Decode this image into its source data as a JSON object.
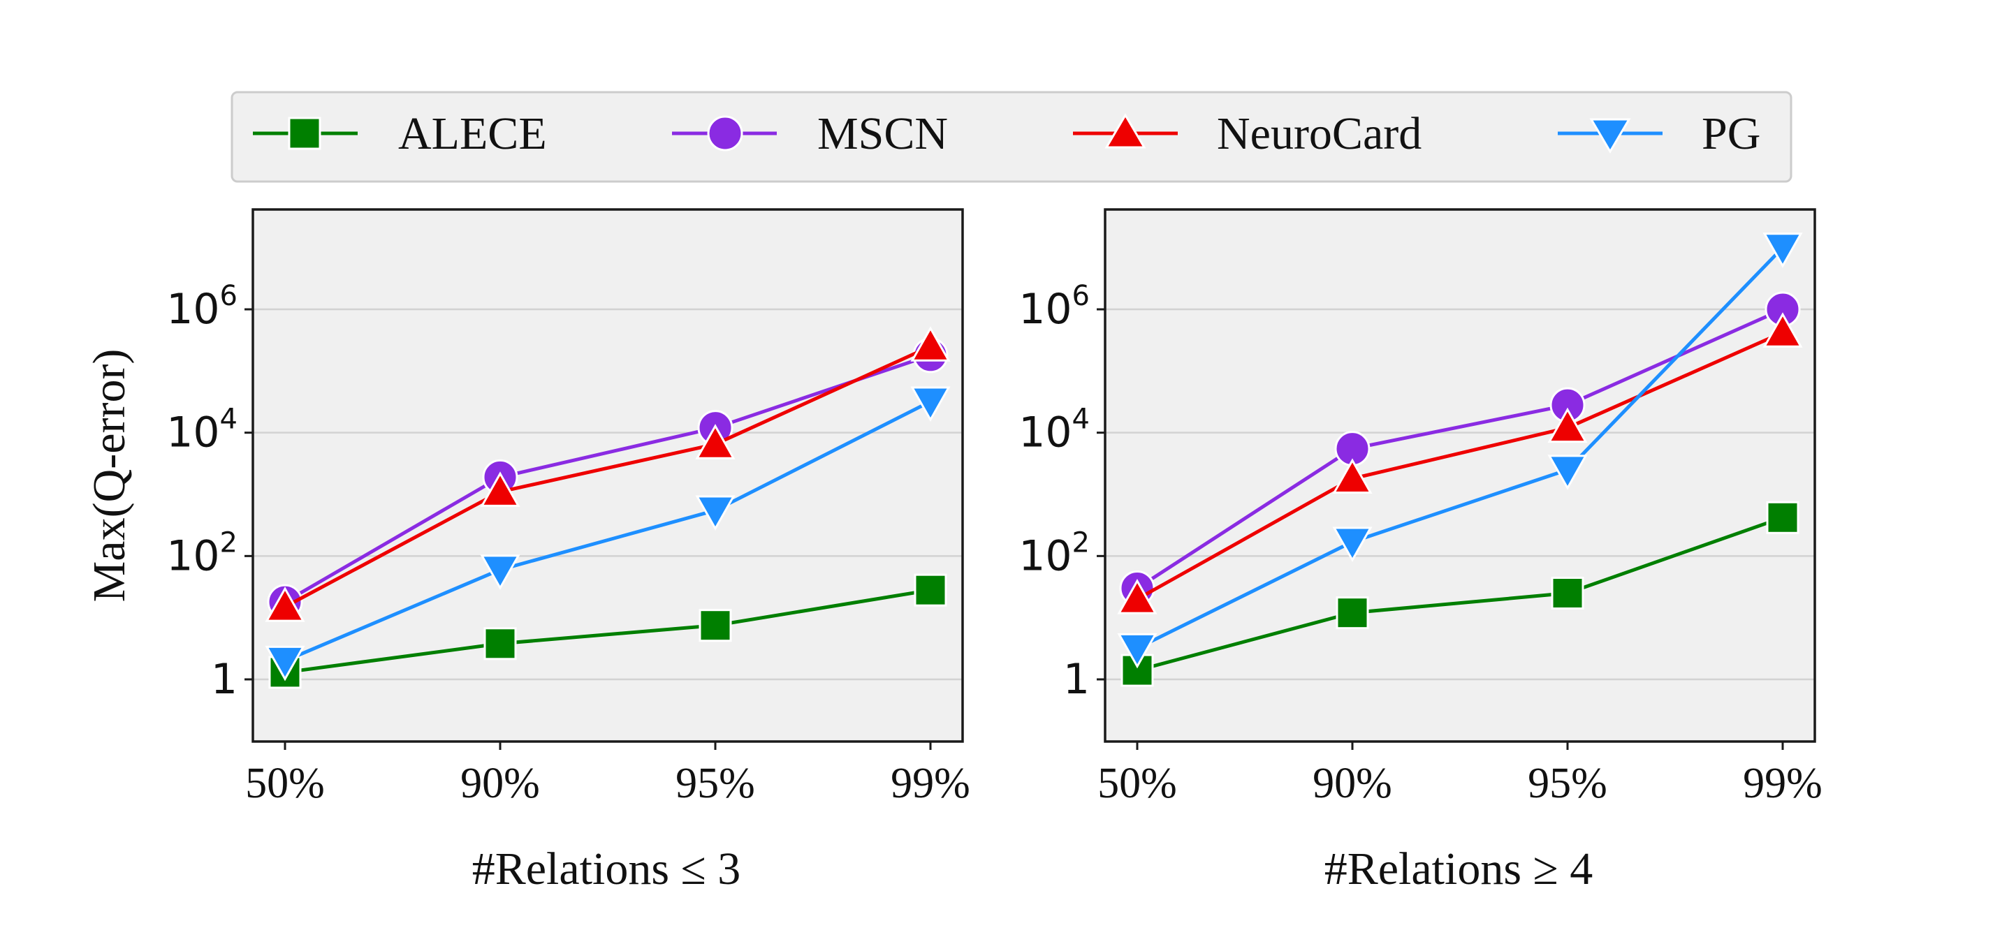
{
  "chart_data": [
    {
      "type": "line",
      "title": "",
      "xlabel": "#Relations ≤ 3",
      "ylabel": "Max(Q-error)",
      "yscale": "log",
      "ylim": [
        0.1,
        50000000
      ],
      "categories": [
        "50%",
        "90%",
        "95%",
        "99%"
      ],
      "yticks": [
        {
          "value": 1,
          "base": "1",
          "exp": ""
        },
        {
          "value": 100,
          "base": "10",
          "exp": "2"
        },
        {
          "value": 10000,
          "base": "10",
          "exp": "4"
        },
        {
          "value": 1000000,
          "base": "10",
          "exp": "6"
        }
      ],
      "series": [
        {
          "name": "ALECE",
          "values": [
            1.3,
            3.8,
            7.5,
            28
          ]
        },
        {
          "name": "MSCN",
          "values": [
            18,
            1900,
            12000,
            180000
          ]
        },
        {
          "name": "NeuroCard",
          "values": [
            15,
            1100,
            6500,
            250000
          ]
        },
        {
          "name": "PG",
          "values": [
            2.0,
            60,
            550,
            32000
          ]
        }
      ]
    },
    {
      "type": "line",
      "title": "",
      "xlabel": "#Relations ≥ 4",
      "ylabel": "",
      "yscale": "log",
      "ylim": [
        0.1,
        50000000
      ],
      "categories": [
        "50%",
        "90%",
        "95%",
        "99%"
      ],
      "yticks": [
        {
          "value": 1,
          "base": "1",
          "exp": ""
        },
        {
          "value": 100,
          "base": "10",
          "exp": "2"
        },
        {
          "value": 10000,
          "base": "10",
          "exp": "4"
        },
        {
          "value": 1000000,
          "base": "10",
          "exp": "6"
        }
      ],
      "series": [
        {
          "name": "ALECE",
          "values": [
            1.4,
            12,
            25,
            420
          ]
        },
        {
          "name": "MSCN",
          "values": [
            30,
            5500,
            28000,
            1000000
          ]
        },
        {
          "name": "NeuroCard",
          "values": [
            20,
            1800,
            12000,
            420000
          ]
        },
        {
          "name": "PG",
          "values": [
            3.2,
            170,
            2500,
            10000000
          ]
        }
      ]
    }
  ],
  "legend": {
    "placement": "top-center",
    "entries": [
      {
        "label": "ALECE",
        "color": "#007f00",
        "marker": "square"
      },
      {
        "label": "MSCN",
        "color": "#8a2be2",
        "marker": "circle"
      },
      {
        "label": "NeuroCard",
        "color": "#ee0000",
        "marker": "triangle-up"
      },
      {
        "label": "PG",
        "color": "#1e8fff",
        "marker": "triangle-down"
      }
    ]
  },
  "series_colors": {
    "ALECE": "#007f00",
    "MSCN": "#8a2be2",
    "NeuroCard": "#ee0000",
    "PG": "#1e8fff"
  },
  "series_markers": {
    "ALECE": "square",
    "MSCN": "circle",
    "NeuroCard": "triangle-up",
    "PG": "triangle-down"
  }
}
